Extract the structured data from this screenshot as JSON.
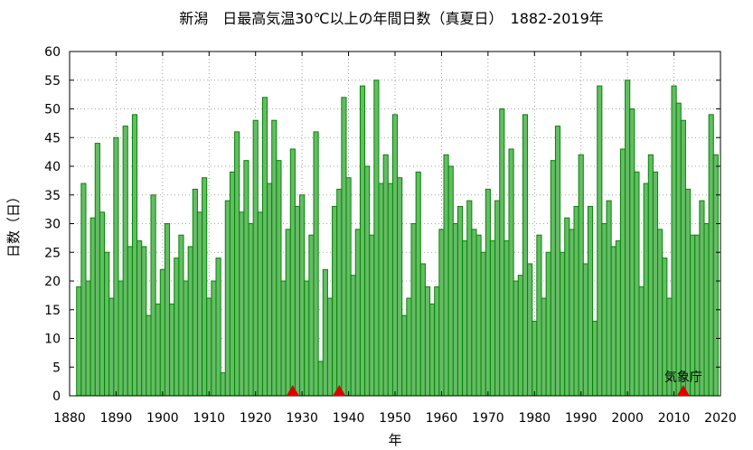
{
  "chart_data": {
    "type": "bar",
    "title": "新潟　日最高気温30℃以上の年間日数（真夏日）　1882-2019年",
    "xlabel": "年",
    "ylabel": "日数（日）",
    "xlim": [
      1880,
      2020
    ],
    "ylim": [
      0,
      60
    ],
    "xticks": [
      1880,
      1890,
      1900,
      1910,
      1920,
      1930,
      1940,
      1950,
      1960,
      1970,
      1980,
      1990,
      2000,
      2010,
      2020
    ],
    "yticks": [
      0,
      5,
      10,
      15,
      20,
      25,
      30,
      35,
      40,
      45,
      50,
      55,
      60
    ],
    "grid": true,
    "start_year": 1882,
    "values": [
      19,
      37,
      20,
      31,
      44,
      32,
      25,
      17,
      45,
      20,
      47,
      26,
      49,
      27,
      26,
      14,
      35,
      16,
      22,
      30,
      16,
      24,
      28,
      20,
      26,
      36,
      32,
      38,
      17,
      20,
      24,
      4,
      34,
      39,
      46,
      32,
      41,
      30,
      48,
      32,
      52,
      37,
      48,
      41,
      20,
      29,
      43,
      33,
      35,
      20,
      28,
      46,
      6,
      22,
      17,
      33,
      36,
      52,
      38,
      21,
      29,
      54,
      40,
      28,
      55,
      37,
      42,
      37,
      49,
      38,
      14,
      17,
      30,
      39,
      23,
      19,
      16,
      19,
      29,
      42,
      40,
      30,
      33,
      27,
      34,
      29,
      28,
      25,
      36,
      27,
      34,
      50,
      27,
      43,
      20,
      21,
      49,
      23,
      13,
      28,
      17,
      25,
      41,
      47,
      25,
      31,
      29,
      33,
      42,
      23,
      33,
      13,
      54,
      30,
      34,
      26,
      27,
      43,
      55,
      50,
      39,
      19,
      37,
      42,
      39,
      29,
      24,
      17,
      54,
      51,
      48,
      36,
      28,
      28,
      34,
      30,
      49,
      42
    ],
    "markers": [
      1928,
      1938,
      2012
    ],
    "annotations": [
      {
        "text": "気象庁",
        "x": 2012
      }
    ]
  }
}
